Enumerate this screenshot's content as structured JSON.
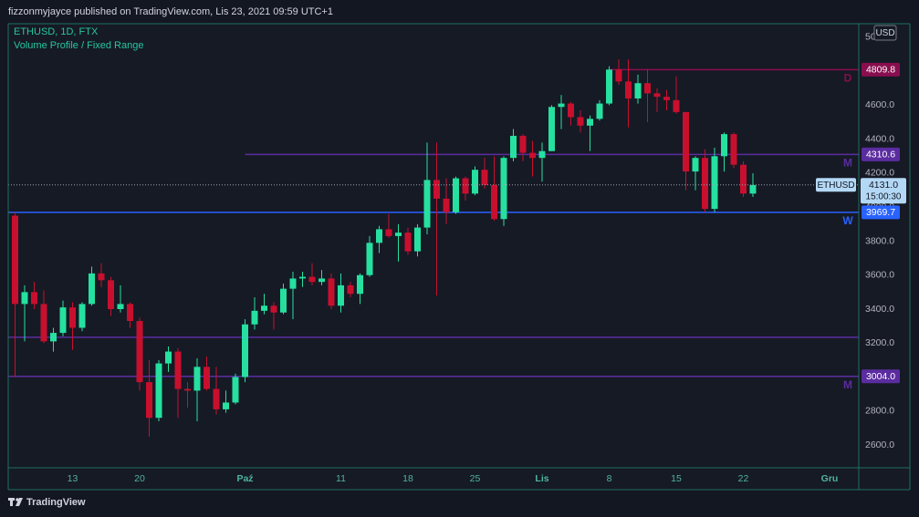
{
  "header": "fizzonmyjayce published on TradingView.com, Lis 23, 2021 09:59 UTC+1",
  "footer": "TradingView",
  "chart_data": {
    "type": "candlestick",
    "title": "ETHUSD, 1D, FTX",
    "subtitle": "Volume Profile / Fixed Range",
    "currency": "USD",
    "categories": [
      null,
      null,
      null,
      null,
      null,
      null,
      "13",
      null,
      null,
      null,
      null,
      null,
      null,
      "20",
      null,
      null,
      null,
      null,
      null,
      null,
      null,
      null,
      null,
      null,
      "Paź",
      null,
      null,
      null,
      null,
      null,
      null,
      null,
      null,
      null,
      "11",
      null,
      null,
      null,
      null,
      null,
      null,
      "18",
      null,
      null,
      null,
      null,
      null,
      null,
      "25",
      null,
      null,
      null,
      null,
      null,
      null,
      "Lis",
      null,
      null,
      null,
      null,
      null,
      null,
      "8",
      null,
      null,
      null,
      null,
      null,
      null,
      "15",
      null,
      null,
      null,
      null,
      null,
      null,
      "22",
      null,
      null,
      null,
      null,
      null,
      null,
      null,
      null,
      "Gru",
      null,
      null,
      null
    ],
    "open": [
      3950,
      3430,
      3500,
      3430,
      3210,
      3260,
      3410,
      3290,
      3430,
      3610,
      3570,
      3400,
      3430,
      3330,
      2970,
      2760,
      3080,
      3150,
      2930,
      2920,
      3060,
      2930,
      2810,
      2850,
      3000,
      3310,
      3390,
      3420,
      3380,
      3520,
      3580,
      3590,
      3560,
      3580,
      3420,
      3540,
      3490,
      3600,
      3790,
      3870,
      3830,
      3850,
      3740,
      3880,
      4160,
      4050,
      3970,
      4170,
      4080,
      4220,
      4130,
      3930,
      4290,
      4420,
      4320,
      4290,
      4330,
      4590,
      4610,
      4530,
      4480,
      4520,
      4610,
      4810,
      4740,
      4640,
      4730,
      4670,
      4650,
      4630,
      4560,
      4210,
      4290,
      3990,
      4300,
      4430,
      4250,
      4080,
      null,
      null,
      null,
      null,
      null,
      null,
      null,
      null,
      null,
      null,
      null
    ],
    "high": [
      3970,
      3540,
      3560,
      3510,
      3290,
      3450,
      3440,
      3440,
      3650,
      3670,
      3590,
      3540,
      3440,
      3350,
      3100,
      3100,
      3180,
      3170,
      2970,
      3110,
      3120,
      3060,
      2920,
      3020,
      3340,
      3470,
      3490,
      3440,
      3550,
      3620,
      3620,
      3670,
      3630,
      3610,
      3610,
      3560,
      3610,
      3830,
      3890,
      3960,
      3900,
      3880,
      3900,
      4380,
      4380,
      4170,
      4180,
      4180,
      4240,
      4290,
      4300,
      4300,
      4460,
      4430,
      4390,
      4380,
      4600,
      4660,
      4620,
      4570,
      4540,
      4630,
      4830,
      4870,
      4870,
      4780,
      4810,
      4700,
      4690,
      4770,
      4560,
      4300,
      4340,
      4350,
      4440,
      4440,
      4270,
      4200,
      null,
      null,
      null,
      null,
      null,
      null,
      null,
      null,
      null,
      null,
      null
    ],
    "low": [
      3000,
      3210,
      3400,
      3200,
      3150,
      3240,
      3160,
      3270,
      3420,
      3530,
      3360,
      3380,
      3290,
      2920,
      2650,
      2740,
      3030,
      2760,
      2820,
      2740,
      2920,
      2780,
      2790,
      2840,
      2970,
      3280,
      3370,
      3280,
      3370,
      3340,
      3530,
      3540,
      3540,
      3400,
      3380,
      3470,
      3430,
      3590,
      3730,
      3820,
      3680,
      3720,
      3710,
      3840,
      3480,
      3900,
      3960,
      4040,
      4070,
      4110,
      3920,
      3890,
      4270,
      4270,
      4180,
      4150,
      4330,
      4460,
      4480,
      4440,
      4330,
      4510,
      4600,
      4720,
      4470,
      4610,
      4500,
      4560,
      4570,
      4550,
      4100,
      4100,
      3970,
      3970,
      4210,
      4230,
      4060,
      4060,
      null,
      null,
      null,
      null,
      null,
      null,
      null,
      null,
      null,
      null,
      null
    ],
    "close": [
      3430,
      3500,
      3430,
      3210,
      3260,
      3410,
      3290,
      3430,
      3610,
      3570,
      3400,
      3430,
      3330,
      2970,
      2760,
      3080,
      3150,
      2930,
      2920,
      3060,
      2930,
      2810,
      2850,
      3000,
      3310,
      3390,
      3420,
      3380,
      3520,
      3580,
      3590,
      3560,
      3580,
      3420,
      3540,
      3490,
      3600,
      3790,
      3870,
      3830,
      3850,
      3740,
      3880,
      4160,
      4050,
      3970,
      4170,
      4080,
      4220,
      4130,
      3930,
      4290,
      4420,
      4320,
      4290,
      4330,
      4590,
      4610,
      4530,
      4480,
      4520,
      4610,
      4810,
      4740,
      4640,
      4730,
      4670,
      4650,
      4630,
      4560,
      4210,
      4290,
      3990,
      4300,
      4430,
      4250,
      4080,
      4130,
      null,
      null,
      null,
      null,
      null,
      null,
      null,
      null,
      null,
      null,
      null
    ],
    "up_color": "#26e0a0",
    "down_color": "#c8102e",
    "ylim": [
      2466,
      5080
    ],
    "yticks": [
      2600,
      2800,
      3000,
      3200,
      3400,
      3600,
      3800,
      4000,
      4200,
      4400,
      4600,
      4800,
      5000
    ],
    "ytick_labels": [
      "2600.0",
      "2800.0",
      "3000.0",
      "3200.0",
      "3400.0",
      "3600.0",
      "3800.0",
      "4000.0",
      "4200.0",
      "4400.0",
      "4600.0",
      "4800.0",
      "5000.0"
    ],
    "grid": false,
    "levels": [
      {
        "value": 4809.8,
        "tag": "D",
        "color": "#880e4f",
        "from": 62
      },
      {
        "value": 4310.6,
        "tag": "M",
        "color": "#5b2ca0",
        "from": 24
      },
      {
        "value": 3969.7,
        "tag": "W",
        "color": "#2962ff"
      },
      {
        "value": 3234,
        "color": "#5b2ca0"
      },
      {
        "value": 3004.0,
        "label": "3004.0",
        "tag": "M",
        "color": "#5b2ca0"
      }
    ],
    "last": {
      "symbol": "ETHUSD",
      "value": 4131,
      "label": "4131.0",
      "countdown": "15:00:30"
    }
  }
}
